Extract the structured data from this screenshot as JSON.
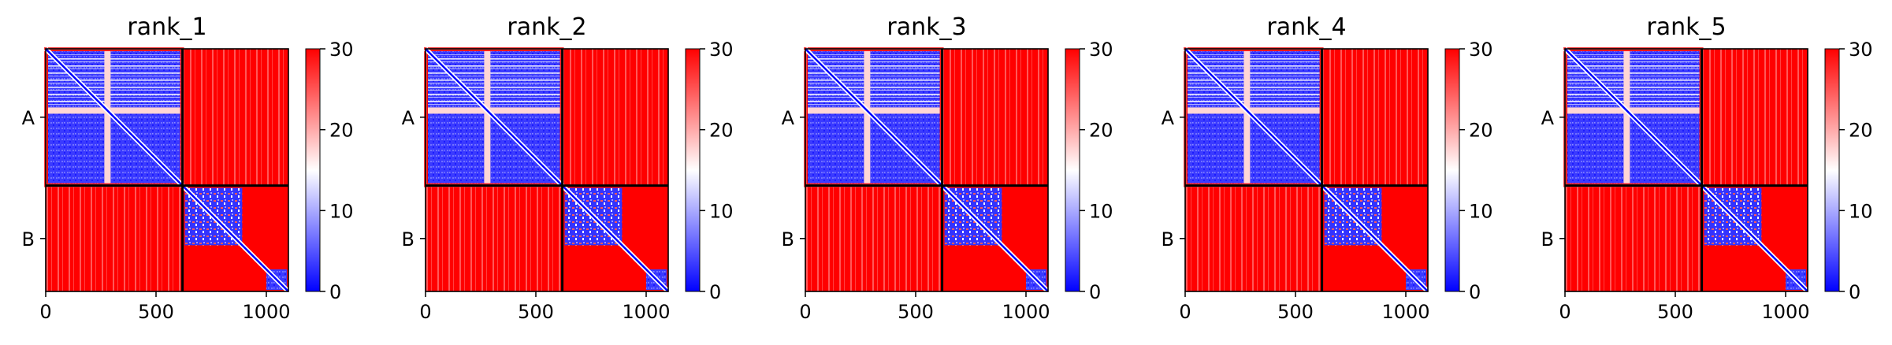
{
  "chart_data": [
    {
      "type": "heatmap",
      "title": "rank_1",
      "x_ticks": [
        0,
        500,
        1000
      ],
      "xlim": [
        0,
        1100
      ],
      "y_tick_labels": [
        "A",
        "B"
      ],
      "chain_boundary": 620,
      "colorbar": {
        "min": 0,
        "max": 30,
        "ticks": [
          0,
          10,
          20,
          30
        ],
        "colors": [
          "#0000ff",
          "#ffffff",
          "#ff0000"
        ]
      },
      "grid": false
    },
    {
      "type": "heatmap",
      "title": "rank_2",
      "x_ticks": [
        0,
        500,
        1000
      ],
      "xlim": [
        0,
        1100
      ],
      "y_tick_labels": [
        "A",
        "B"
      ],
      "chain_boundary": 620,
      "colorbar": {
        "min": 0,
        "max": 30,
        "ticks": [
          0,
          10,
          20,
          30
        ],
        "colors": [
          "#0000ff",
          "#ffffff",
          "#ff0000"
        ]
      },
      "grid": false
    },
    {
      "type": "heatmap",
      "title": "rank_3",
      "x_ticks": [
        0,
        500,
        1000
      ],
      "xlim": [
        0,
        1100
      ],
      "y_tick_labels": [
        "A",
        "B"
      ],
      "chain_boundary": 620,
      "colorbar": {
        "min": 0,
        "max": 30,
        "ticks": [
          0,
          10,
          20,
          30
        ],
        "colors": [
          "#0000ff",
          "#ffffff",
          "#ff0000"
        ]
      },
      "grid": false
    },
    {
      "type": "heatmap",
      "title": "rank_4",
      "x_ticks": [
        0,
        500,
        1000
      ],
      "xlim": [
        0,
        1100
      ],
      "y_tick_labels": [
        "A",
        "B"
      ],
      "chain_boundary": 620,
      "colorbar": {
        "min": 0,
        "max": 30,
        "ticks": [
          0,
          10,
          20,
          30
        ],
        "colors": [
          "#0000ff",
          "#ffffff",
          "#ff0000"
        ]
      },
      "grid": false
    },
    {
      "type": "heatmap",
      "title": "rank_5",
      "x_ticks": [
        0,
        500,
        1000
      ],
      "xlim": [
        0,
        1100
      ],
      "y_tick_labels": [
        "A",
        "B"
      ],
      "chain_boundary": 620,
      "colorbar": {
        "min": 0,
        "max": 30,
        "ticks": [
          0,
          10,
          20,
          30
        ],
        "colors": [
          "#0000ff",
          "#ffffff",
          "#ff0000"
        ]
      },
      "grid": false
    }
  ]
}
